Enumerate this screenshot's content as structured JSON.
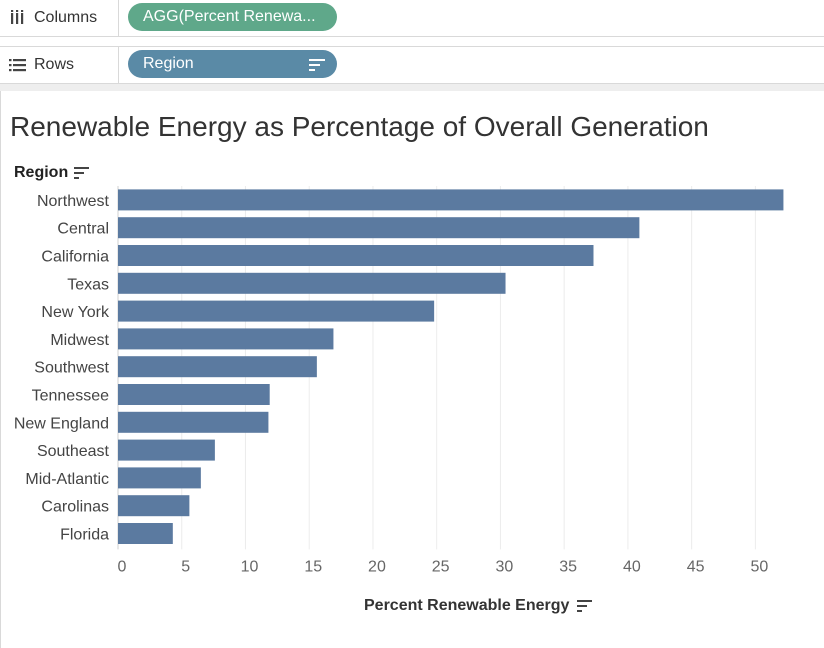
{
  "shelves": {
    "columns": {
      "label": "Columns",
      "icon": "columns-icon",
      "pill": "AGG(Percent Renewa..."
    },
    "rows": {
      "label": "Rows",
      "icon": "rows-icon",
      "pill": "Region"
    }
  },
  "colors": {
    "bar": "#5b7aa0",
    "measure_pill": "#5fa88a",
    "dimension_pill": "#5a8aa6",
    "grid": "#ececec"
  },
  "chart_data": {
    "type": "bar",
    "orientation": "horizontal",
    "title": "Renewable Energy as Percentage of Overall Generation",
    "ylabel": "Region",
    "xlabel": "Percent Renewable Energy",
    "xlim": [
      0,
      53.5
    ],
    "xticks": [
      0,
      5,
      10,
      15,
      20,
      25,
      30,
      35,
      40,
      45,
      50
    ],
    "grid": true,
    "categories": [
      "Northwest",
      "Central",
      "California",
      "Texas",
      "New York",
      "Midwest",
      "Southwest",
      "Tennessee",
      "New England",
      "Southeast",
      "Mid-Atlantic",
      "Carolinas",
      "Florida"
    ],
    "values": [
      52.2,
      40.9,
      37.3,
      30.4,
      24.8,
      16.9,
      15.6,
      11.9,
      11.8,
      7.6,
      6.5,
      5.6,
      4.3
    ]
  }
}
